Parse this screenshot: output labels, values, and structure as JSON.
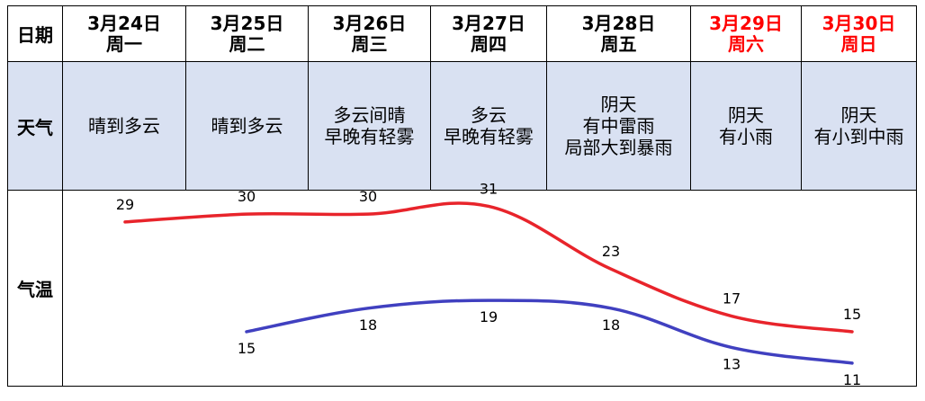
{
  "header": {
    "date_label": "日期",
    "weather_label": "天气",
    "temp_label": "气温"
  },
  "days": [
    {
      "date": "3月24日",
      "weekday": "周一",
      "weather": [
        "晴到多云"
      ],
      "weekend": false
    },
    {
      "date": "3月25日",
      "weekday": "周二",
      "weather": [
        "晴到多云"
      ],
      "weekend": false
    },
    {
      "date": "3月26日",
      "weekday": "周三",
      "weather": [
        "多云间晴",
        "早晚有轻雾"
      ],
      "weekend": false
    },
    {
      "date": "3月27日",
      "weekday": "周四",
      "weather": [
        "多云",
        "早晚有轻雾"
      ],
      "weekend": false
    },
    {
      "date": "3月28日",
      "weekday": "周五",
      "weather": [
        "阴天",
        "有中雷雨",
        "局部大到暴雨"
      ],
      "weekend": false
    },
    {
      "date": "3月29日",
      "weekday": "周六",
      "weather": [
        "阴天",
        "有小雨"
      ],
      "weekend": true
    },
    {
      "date": "3月30日",
      "weekday": "周日",
      "weather": [
        "阴天",
        "有小到中雨"
      ],
      "weekend": true
    }
  ],
  "colors": {
    "high_line": "#e8242b",
    "low_line": "#4040c0",
    "weekend_text": "#ff0000",
    "weather_bg": "#d9e1f2"
  },
  "chart_data": {
    "type": "line",
    "categories": [
      "3月24日",
      "3月25日",
      "3月26日",
      "3月27日",
      "3月28日",
      "3月29日",
      "3月30日"
    ],
    "series": [
      {
        "values": [
          29,
          30,
          30,
          31,
          23,
          17,
          15
        ]
      },
      {
        "values": [
          null,
          15,
          18,
          19,
          18,
          13,
          11
        ]
      }
    ],
    "ylim": [
      8,
      33
    ],
    "grid": false,
    "legend": "none"
  }
}
